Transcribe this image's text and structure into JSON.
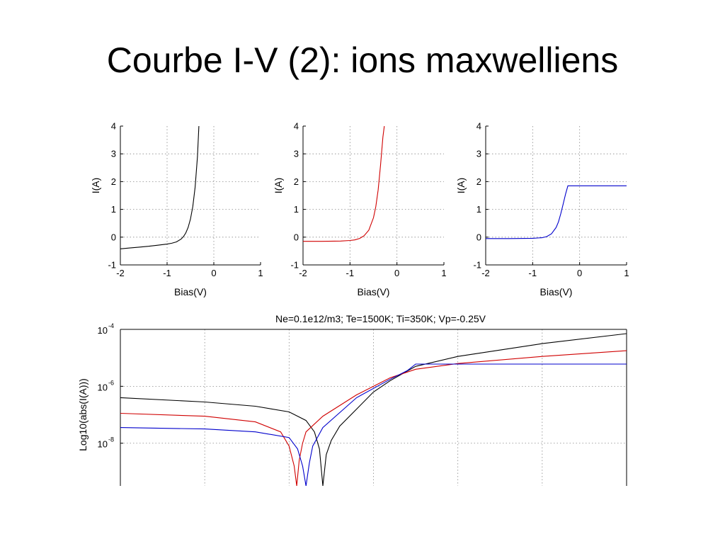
{
  "slide": {
    "title": "Courbe I-V (2): ions maxwelliens"
  },
  "chart_data": [
    {
      "type": "line",
      "id": "iv1",
      "xlabel": "Bias(V)",
      "ylabel": "I(A)",
      "xlim": [
        -2,
        1
      ],
      "ylim": [
        -1,
        4
      ],
      "xticks": [
        -2,
        -1,
        0,
        1
      ],
      "yticks": [
        -1,
        0,
        1,
        2,
        3,
        4
      ],
      "grid": true,
      "series": [
        {
          "color": "#000000",
          "x": [
            -2.0,
            -1.8,
            -1.6,
            -1.4,
            -1.2,
            -1.0,
            -0.9,
            -0.8,
            -0.7,
            -0.65,
            -0.6,
            -0.55,
            -0.5,
            -0.45,
            -0.4,
            -0.35,
            -0.32
          ],
          "y": [
            -0.42,
            -0.39,
            -0.36,
            -0.33,
            -0.29,
            -0.25,
            -0.22,
            -0.17,
            -0.07,
            0.02,
            0.15,
            0.35,
            0.65,
            1.1,
            1.8,
            2.9,
            4.0
          ]
        }
      ]
    },
    {
      "type": "line",
      "id": "iv2",
      "xlabel": "Bias(V)",
      "ylabel": "I(A)",
      "xlim": [
        -2,
        1
      ],
      "ylim": [
        -1,
        4
      ],
      "xticks": [
        -2,
        -1,
        0,
        1
      ],
      "yticks": [
        -1,
        0,
        1,
        2,
        3,
        4
      ],
      "grid": true,
      "series": [
        {
          "color": "#d00000",
          "x": [
            -2.0,
            -1.6,
            -1.2,
            -1.0,
            -0.9,
            -0.8,
            -0.7,
            -0.6,
            -0.5,
            -0.45,
            -0.4,
            -0.35,
            -0.3,
            -0.27
          ],
          "y": [
            -0.15,
            -0.15,
            -0.14,
            -0.12,
            -0.1,
            -0.05,
            0.05,
            0.25,
            0.7,
            1.1,
            1.7,
            2.6,
            3.6,
            4.0
          ]
        }
      ]
    },
    {
      "type": "line",
      "id": "iv3",
      "xlabel": "Bias(V)",
      "ylabel": "I(A)",
      "xlim": [
        -2,
        1
      ],
      "ylim": [
        -1,
        4
      ],
      "xticks": [
        -2,
        -1,
        0,
        1
      ],
      "yticks": [
        -1,
        0,
        1,
        2,
        3,
        4
      ],
      "grid": true,
      "series": [
        {
          "color": "#0000cc",
          "x": [
            -2.0,
            -1.5,
            -1.0,
            -0.8,
            -0.7,
            -0.6,
            -0.5,
            -0.45,
            -0.4,
            -0.35,
            -0.3,
            -0.25,
            0.0,
            0.5,
            1.0
          ],
          "y": [
            -0.05,
            -0.05,
            -0.04,
            -0.02,
            0.02,
            0.12,
            0.35,
            0.55,
            0.85,
            1.2,
            1.55,
            1.85,
            1.85,
            1.85,
            1.85
          ]
        }
      ]
    },
    {
      "type": "line",
      "id": "log",
      "title": "Ne=0.1e12/m3; Te=1500K; Ti=350K; Vp=-0.25V",
      "ylabel": "Log10(abs(I(A)))",
      "xlim": [
        -2,
        1
      ],
      "log_ylim": [
        -9.5,
        -4
      ],
      "yscale": "log",
      "xgrid": [
        -1.5,
        -1,
        -0.5,
        0,
        0.5
      ],
      "yticks": [
        {
          "exp": -4,
          "base": "10",
          "power": "-4"
        },
        {
          "exp": -6,
          "base": "10",
          "power": "-6"
        },
        {
          "exp": -8,
          "base": "10",
          "power": "-8"
        }
      ],
      "grid": true,
      "series": [
        {
          "color": "#000000",
          "x": [
            -2.0,
            -1.5,
            -1.2,
            -1.0,
            -0.9,
            -0.85,
            -0.82,
            -0.8,
            -0.78,
            -0.75,
            -0.7,
            -0.6,
            -0.5,
            -0.4,
            -0.25,
            0.0,
            0.5,
            1.0
          ],
          "log_y": [
            -6.4,
            -6.55,
            -6.7,
            -6.9,
            -7.2,
            -7.6,
            -8.2,
            -9.5,
            -8.4,
            -7.9,
            -7.4,
            -6.8,
            -6.2,
            -5.8,
            -5.3,
            -4.95,
            -4.5,
            -4.15
          ]
        },
        {
          "color": "#d00000",
          "x": [
            -2.0,
            -1.5,
            -1.2,
            -1.05,
            -1.0,
            -0.97,
            -0.955,
            -0.94,
            -0.92,
            -0.9,
            -0.8,
            -0.6,
            -0.4,
            -0.25,
            0.0,
            0.5,
            1.0
          ],
          "log_y": [
            -6.95,
            -7.05,
            -7.25,
            -7.6,
            -8.1,
            -8.8,
            -9.5,
            -8.6,
            -8.0,
            -7.6,
            -7.05,
            -6.3,
            -5.7,
            -5.4,
            -5.2,
            -4.95,
            -4.75
          ]
        },
        {
          "color": "#0000cc",
          "x": [
            -2.0,
            -1.5,
            -1.2,
            -1.0,
            -0.95,
            -0.92,
            -0.9,
            -0.88,
            -0.86,
            -0.8,
            -0.6,
            -0.4,
            -0.3,
            -0.25,
            0.0,
            0.5,
            1.0
          ],
          "log_y": [
            -7.45,
            -7.5,
            -7.6,
            -7.8,
            -8.2,
            -8.8,
            -9.5,
            -8.7,
            -8.1,
            -7.45,
            -6.4,
            -5.75,
            -5.45,
            -5.22,
            -5.22,
            -5.22,
            -5.22
          ]
        }
      ]
    }
  ]
}
